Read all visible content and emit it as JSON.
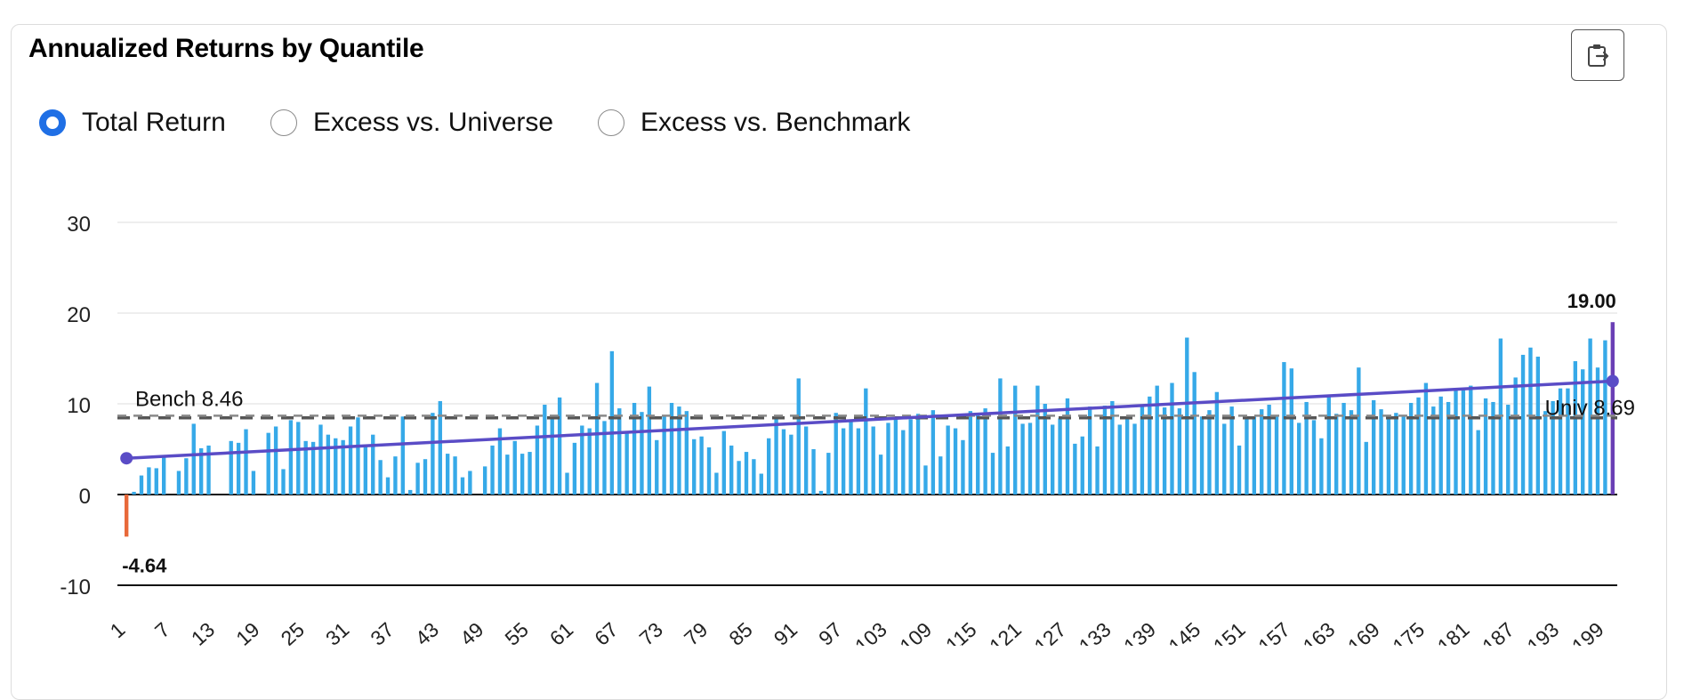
{
  "panel": {
    "title": "Annualized Returns by Quantile",
    "export_icon": "clipboard-export-icon"
  },
  "controls": {
    "options": [
      {
        "label": "Total Return",
        "checked": true
      },
      {
        "label": "Excess vs. Universe",
        "checked": false
      },
      {
        "label": "Excess vs. Benchmark",
        "checked": false
      }
    ]
  },
  "colors": {
    "bar": "#36a9e8",
    "negative_bar": "#e8693a",
    "top_bar": "#6a3fb5",
    "trend": "#5a4cc6",
    "bench": "#555555",
    "univ": "#8a8a8a",
    "radio_checked": "#1f6fe5"
  },
  "chart_data": {
    "type": "bar",
    "n_quantiles": 200,
    "x_tick_labels": [
      "1",
      "7",
      "13",
      "19",
      "25",
      "31",
      "37",
      "43",
      "49",
      "55",
      "61",
      "67",
      "73",
      "79",
      "85",
      "91",
      "97",
      "103",
      "109",
      "115",
      "121",
      "127",
      "133",
      "139",
      "145",
      "151",
      "157",
      "163",
      "169",
      "175",
      "181",
      "187",
      "193",
      "199"
    ],
    "y_ticks": [
      30,
      20,
      10,
      0,
      -10
    ],
    "ylim": [
      -10,
      30
    ],
    "values": [
      -4.64,
      0.3,
      2.1,
      3.0,
      2.9,
      4.3,
      0,
      2.6,
      4.0,
      7.8,
      5.1,
      5.4,
      0,
      0,
      5.9,
      5.7,
      7.2,
      2.6,
      0,
      6.8,
      7.5,
      2.8,
      8.2,
      8.0,
      5.9,
      5.8,
      7.7,
      6.6,
      6.2,
      6.0,
      7.5,
      8.5,
      5.5,
      6.6,
      3.8,
      1.9,
      4.2,
      8.6,
      0.5,
      3.5,
      3.9,
      9.0,
      10.3,
      4.5,
      4.2,
      1.9,
      2.6,
      0,
      3.1,
      5.4,
      7.3,
      4.4,
      5.9,
      4.5,
      4.7,
      7.6,
      9.9,
      8.4,
      10.7,
      2.4,
      5.7,
      7.6,
      7.3,
      12.3,
      8.1,
      15.8,
      9.5,
      6.9,
      10.1,
      9.1,
      11.9,
      6.0,
      8.7,
      10.1,
      9.7,
      9.2,
      6.1,
      6.4,
      5.2,
      2.4,
      7.0,
      5.4,
      3.7,
      4.7,
      3.9,
      2.3,
      6.2,
      8.4,
      7.2,
      6.6,
      12.8,
      7.5,
      5.0,
      0.4,
      4.6,
      9.0,
      7.3,
      8.2,
      7.3,
      11.7,
      7.5,
      4.4,
      7.9,
      8.3,
      7.1,
      8.3,
      8.9,
      3.2,
      9.3,
      4.2,
      7.6,
      7.3,
      6.0,
      9.2,
      9.0,
      9.5,
      4.6,
      12.8,
      5.3,
      12.0,
      7.8,
      7.9,
      12.0,
      10.0,
      7.7,
      8.4,
      10.6,
      5.6,
      6.4,
      9.7,
      5.3,
      9.8,
      10.3,
      7.7,
      8.5,
      7.8,
      9.7,
      10.8,
      12.0,
      9.6,
      12.3,
      9.5,
      17.3,
      13.5,
      8.6,
      9.3,
      11.3,
      7.8,
      9.7,
      5.4,
      8.5,
      8.6,
      9.4,
      9.9,
      8.7,
      14.6,
      13.9,
      7.9,
      10.2,
      8.2,
      6.2,
      10.8,
      8.9,
      10.1,
      9.3,
      14.0,
      5.8,
      10.4,
      9.4,
      8.5,
      9.0,
      8.6,
      10.1,
      10.7,
      12.3,
      9.7,
      10.8,
      10.2,
      11.5,
      11.6,
      12.0,
      7.1,
      10.6,
      10.2,
      17.2,
      9.9,
      12.9,
      15.4,
      16.2,
      15.2,
      9.2,
      10.3,
      11.7,
      11.7,
      14.7,
      13.8,
      17.2,
      14.0,
      17.0,
      19.0
    ],
    "reference_lines": [
      {
        "name": "Bench",
        "label": "Bench 8.46",
        "value": 8.46,
        "style": "dashed"
      },
      {
        "name": "Univ",
        "label": "Univ 8.69",
        "value": 8.69,
        "style": "dashed"
      }
    ],
    "trend_line": {
      "start": 4.0,
      "end": 12.5
    },
    "annotations": [
      {
        "label": "-4.64",
        "at": 1,
        "value": -4.64
      },
      {
        "label": "19.00",
        "at": 200,
        "value": 19.0
      }
    ]
  }
}
